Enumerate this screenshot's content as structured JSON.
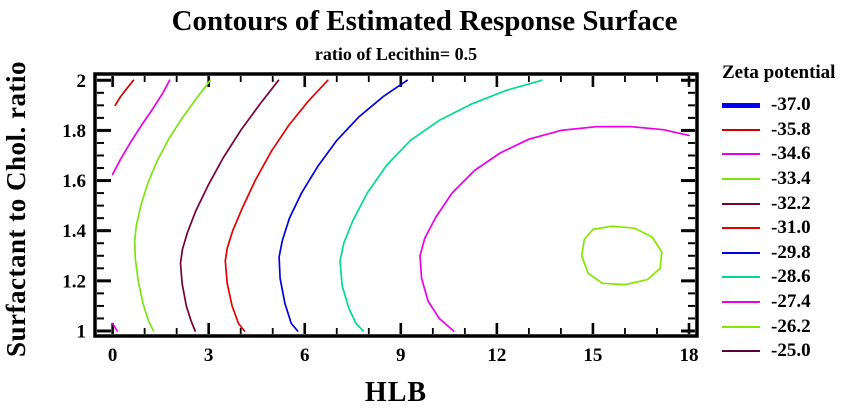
{
  "title": "Contours of Estimated Response Surface",
  "subtitle": "ratio of Lecithin= 0.5",
  "chart_data": {
    "type": "contour",
    "title": "Contours of Estimated Response Surface",
    "subtitle": "ratio of Lecithin= 0.5",
    "xlabel": "HLB",
    "ylabel": "Surfactant to Chol. ratio",
    "xlim": [
      -0.55,
      18.25
    ],
    "ylim": [
      0.98,
      2.025
    ],
    "x_major_ticks": [
      0,
      3,
      6,
      9,
      12,
      15,
      18
    ],
    "x_tick_labels": [
      "0",
      "3",
      "6",
      "9",
      "12",
      "15",
      "18"
    ],
    "x_minor_step": 1,
    "y_major_ticks": [
      2,
      1.8,
      1.6,
      1.4,
      1.2,
      1
    ],
    "y_tick_labels": [
      "2",
      "1.8",
      "1.6",
      "1.4",
      "1.2",
      "1"
    ],
    "y_minor_step": 0.05,
    "grid": false,
    "legend": {
      "title": "Zeta potential",
      "position": "right"
    },
    "frame_color": "#000000",
    "levels": [
      {
        "label": "-37.0",
        "value": -37.0,
        "color": "#0000F2",
        "thick": true,
        "paths": []
      },
      {
        "label": "-35.8",
        "value": -35.8,
        "color": "#CF0000",
        "thick": false,
        "paths": [
          [
            [
              0.08,
              1.9
            ],
            [
              0.25,
              1.935
            ],
            [
              0.45,
              1.968
            ],
            [
              0.65,
              2.0
            ]
          ]
        ]
      },
      {
        "label": "-34.6",
        "value": -34.6,
        "color": "#E800E8",
        "thick": false,
        "paths": [
          [
            [
              0,
              1.625
            ],
            [
              0.25,
              1.685
            ],
            [
              0.55,
              1.75
            ],
            [
              0.9,
              1.82
            ],
            [
              1.25,
              1.885
            ],
            [
              1.55,
              1.945
            ],
            [
              1.78,
              2.0
            ]
          ],
          [
            [
              0,
              1.03
            ],
            [
              0.14,
              1.0
            ]
          ]
        ]
      },
      {
        "label": "-33.4",
        "value": -33.4,
        "color": "#7CE314",
        "thick": false,
        "paths": [
          [
            [
              3.05,
              2.0
            ],
            [
              2.6,
              1.925
            ],
            [
              2.15,
              1.845
            ],
            [
              1.75,
              1.765
            ],
            [
              1.4,
              1.68
            ],
            [
              1.1,
              1.59
            ],
            [
              0.88,
              1.5
            ],
            [
              0.74,
              1.42
            ],
            [
              0.69,
              1.36
            ],
            [
              0.71,
              1.29
            ],
            [
              0.8,
              1.2
            ],
            [
              0.95,
              1.11
            ],
            [
              1.12,
              1.04
            ],
            [
              1.28,
              1.0
            ]
          ]
        ]
      },
      {
        "label": "-32.2",
        "value": -32.2,
        "color": "#780038",
        "thick": false,
        "paths": [
          [
            [
              5.18,
              2.0
            ],
            [
              4.6,
              1.905
            ],
            [
              4.0,
              1.8
            ],
            [
              3.45,
              1.69
            ],
            [
              3.0,
              1.585
            ],
            [
              2.6,
              1.48
            ],
            [
              2.33,
              1.39
            ],
            [
              2.18,
              1.325
            ],
            [
              2.12,
              1.27
            ],
            [
              2.17,
              1.19
            ],
            [
              2.3,
              1.1
            ],
            [
              2.45,
              1.04
            ],
            [
              2.58,
              1.0
            ]
          ]
        ]
      },
      {
        "label": "-31.0",
        "value": -31.0,
        "color": "#E60000",
        "thick": false,
        "paths": [
          [
            [
              6.72,
              2.0
            ],
            [
              6.1,
              1.915
            ],
            [
              5.5,
              1.82
            ],
            [
              4.95,
              1.715
            ],
            [
              4.45,
              1.6
            ],
            [
              4.05,
              1.49
            ],
            [
              3.75,
              1.4
            ],
            [
              3.58,
              1.33
            ],
            [
              3.52,
              1.28
            ],
            [
              3.58,
              1.19
            ],
            [
              3.73,
              1.1
            ],
            [
              3.93,
              1.03
            ],
            [
              4.12,
              1.0
            ]
          ]
        ]
      },
      {
        "label": "-29.8",
        "value": -29.8,
        "color": "#0000DC",
        "thick": false,
        "paths": [
          [
            [
              9.2,
              2.0
            ],
            [
              8.45,
              1.935
            ],
            [
              7.7,
              1.855
            ],
            [
              7.0,
              1.76
            ],
            [
              6.4,
              1.655
            ],
            [
              5.9,
              1.55
            ],
            [
              5.52,
              1.45
            ],
            [
              5.3,
              1.36
            ],
            [
              5.2,
              1.295
            ],
            [
              5.23,
              1.21
            ],
            [
              5.38,
              1.11
            ],
            [
              5.58,
              1.03
            ],
            [
              5.78,
              1.0
            ]
          ]
        ]
      },
      {
        "label": "-28.6",
        "value": -28.6,
        "color": "#00DC8C",
        "thick": false,
        "paths": [
          [
            [
              13.4,
              2.0
            ],
            [
              12.3,
              1.96
            ],
            [
              11.2,
              1.905
            ],
            [
              10.2,
              1.84
            ],
            [
              9.3,
              1.76
            ],
            [
              8.55,
              1.66
            ],
            [
              7.95,
              1.55
            ],
            [
              7.5,
              1.44
            ],
            [
              7.22,
              1.35
            ],
            [
              7.1,
              1.28
            ],
            [
              7.17,
              1.18
            ],
            [
              7.38,
              1.09
            ],
            [
              7.6,
              1.03
            ],
            [
              7.83,
              1.0
            ]
          ]
        ]
      },
      {
        "label": "-27.4",
        "value": -27.4,
        "color": "#E800E8",
        "thick": false,
        "paths": [
          [
            [
              18,
              1.78
            ],
            [
              17.2,
              1.803
            ],
            [
              16.2,
              1.815
            ],
            [
              15.1,
              1.815
            ],
            [
              14.0,
              1.8
            ],
            [
              13.0,
              1.765
            ],
            [
              12.1,
              1.71
            ],
            [
              11.3,
              1.64
            ],
            [
              10.6,
              1.55
            ],
            [
              10.1,
              1.455
            ],
            [
              9.75,
              1.37
            ],
            [
              9.6,
              1.3
            ],
            [
              9.65,
              1.21
            ],
            [
              9.85,
              1.12
            ],
            [
              10.2,
              1.05
            ],
            [
              10.65,
              1.0
            ]
          ]
        ]
      },
      {
        "label": "-26.2",
        "value": -26.2,
        "color": "#84E700",
        "thick": false,
        "closed": true,
        "paths": [
          [
            [
              14.65,
              1.3
            ],
            [
              14.73,
              1.365
            ],
            [
              15.0,
              1.405
            ],
            [
              15.6,
              1.418
            ],
            [
              16.3,
              1.41
            ],
            [
              16.85,
              1.375
            ],
            [
              17.15,
              1.315
            ],
            [
              17.1,
              1.25
            ],
            [
              16.7,
              1.205
            ],
            [
              16.0,
              1.185
            ],
            [
              15.3,
              1.19
            ],
            [
              14.85,
              1.23
            ]
          ]
        ]
      },
      {
        "label": "-25.0",
        "value": -25.0,
        "color": "#5A0040",
        "thick": false,
        "paths": []
      }
    ]
  }
}
